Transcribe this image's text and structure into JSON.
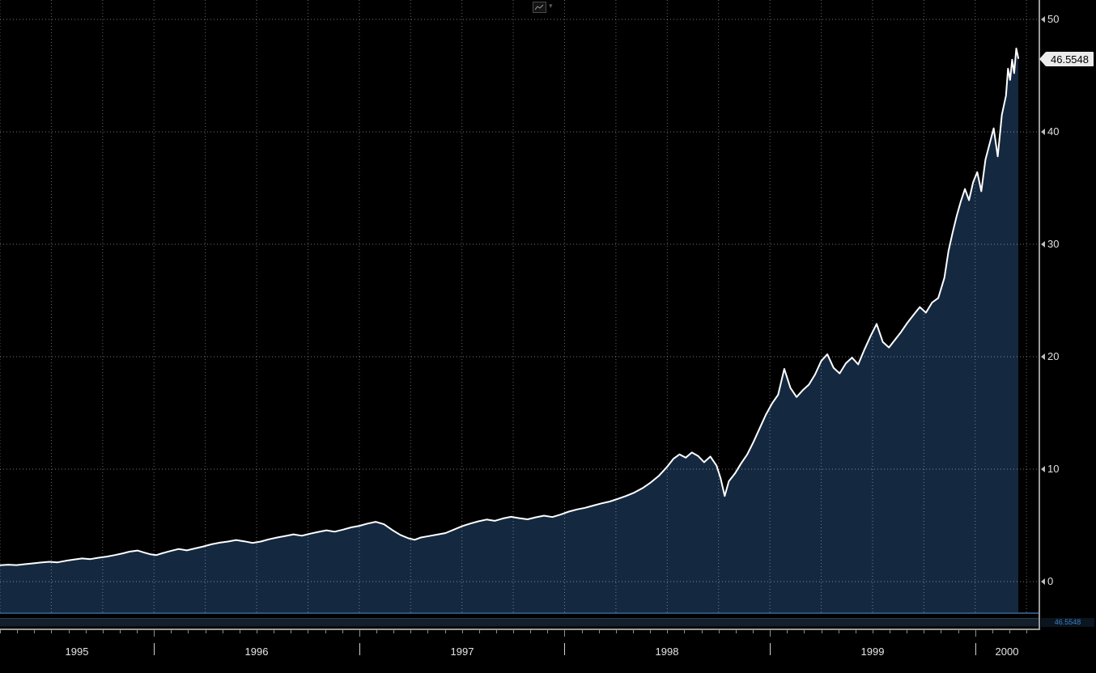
{
  "toolbar": {
    "chart_style_caret": "▾"
  },
  "y_axis": {
    "ticks": [
      50,
      40,
      30,
      20,
      10,
      0
    ]
  },
  "x_axis": {
    "years": [
      "1995",
      "1996",
      "1997",
      "1998",
      "1999",
      "2000"
    ]
  },
  "last_price": {
    "value": "46.5548"
  },
  "scrollbar": {
    "value_label": "46.5548"
  },
  "colors": {
    "background": "#000000",
    "area_fill": "#142940",
    "line": "#ffffff",
    "grid": "#ffffff",
    "axis": "#9a9a9a",
    "tag_bg": "#ececec",
    "tag_text": "#000000",
    "mini_tag_text": "#3e7fc1",
    "bottom_line": "#2e5379"
  },
  "chart_data": {
    "type": "area",
    "title": "",
    "ylabel": "",
    "xlabel": "",
    "legend": [],
    "grid": "dotted",
    "x_unit": "decimal_year",
    "x_range": [
      1995.25,
      2000.21
    ],
    "y_ticks": [
      0,
      10,
      20,
      30,
      40,
      50
    ],
    "y_display_range": [
      -2.95,
      51.7
    ],
    "x_year_boundaries": [
      1996,
      1997,
      1998,
      1999,
      2000
    ],
    "last_value": 46.5548,
    "last_value_label": "46.5548",
    "points": [
      [
        1995.25,
        1.45
      ],
      [
        1995.29,
        1.5
      ],
      [
        1995.33,
        1.47
      ],
      [
        1995.37,
        1.55
      ],
      [
        1995.41,
        1.62
      ],
      [
        1995.45,
        1.7
      ],
      [
        1995.49,
        1.76
      ],
      [
        1995.53,
        1.71
      ],
      [
        1995.57,
        1.85
      ],
      [
        1995.61,
        1.96
      ],
      [
        1995.65,
        2.06
      ],
      [
        1995.69,
        2.0
      ],
      [
        1995.73,
        2.12
      ],
      [
        1995.77,
        2.22
      ],
      [
        1995.81,
        2.36
      ],
      [
        1995.85,
        2.52
      ],
      [
        1995.88,
        2.66
      ],
      [
        1995.92,
        2.76
      ],
      [
        1995.95,
        2.6
      ],
      [
        1995.98,
        2.44
      ],
      [
        1996.01,
        2.35
      ],
      [
        1996.04,
        2.52
      ],
      [
        1996.08,
        2.72
      ],
      [
        1996.12,
        2.9
      ],
      [
        1996.16,
        2.78
      ],
      [
        1996.2,
        2.95
      ],
      [
        1996.24,
        3.12
      ],
      [
        1996.28,
        3.32
      ],
      [
        1996.32,
        3.46
      ],
      [
        1996.36,
        3.56
      ],
      [
        1996.4,
        3.7
      ],
      [
        1996.44,
        3.58
      ],
      [
        1996.48,
        3.44
      ],
      [
        1996.52,
        3.56
      ],
      [
        1996.56,
        3.76
      ],
      [
        1996.6,
        3.92
      ],
      [
        1996.64,
        4.06
      ],
      [
        1996.68,
        4.2
      ],
      [
        1996.72,
        4.08
      ],
      [
        1996.76,
        4.26
      ],
      [
        1996.8,
        4.42
      ],
      [
        1996.84,
        4.56
      ],
      [
        1996.88,
        4.44
      ],
      [
        1996.92,
        4.62
      ],
      [
        1996.96,
        4.82
      ],
      [
        1997.0,
        4.96
      ],
      [
        1997.04,
        5.16
      ],
      [
        1997.08,
        5.32
      ],
      [
        1997.12,
        5.1
      ],
      [
        1997.16,
        4.6
      ],
      [
        1997.2,
        4.15
      ],
      [
        1997.24,
        3.85
      ],
      [
        1997.27,
        3.72
      ],
      [
        1997.3,
        3.92
      ],
      [
        1997.34,
        4.05
      ],
      [
        1997.38,
        4.18
      ],
      [
        1997.42,
        4.32
      ],
      [
        1997.46,
        4.62
      ],
      [
        1997.5,
        4.92
      ],
      [
        1997.54,
        5.16
      ],
      [
        1997.58,
        5.36
      ],
      [
        1997.62,
        5.52
      ],
      [
        1997.66,
        5.4
      ],
      [
        1997.7,
        5.62
      ],
      [
        1997.74,
        5.76
      ],
      [
        1997.78,
        5.64
      ],
      [
        1997.82,
        5.54
      ],
      [
        1997.86,
        5.72
      ],
      [
        1997.9,
        5.86
      ],
      [
        1997.94,
        5.74
      ],
      [
        1997.98,
        5.96
      ],
      [
        1998.02,
        6.22
      ],
      [
        1998.06,
        6.42
      ],
      [
        1998.1,
        6.56
      ],
      [
        1998.14,
        6.76
      ],
      [
        1998.18,
        6.96
      ],
      [
        1998.22,
        7.12
      ],
      [
        1998.26,
        7.36
      ],
      [
        1998.3,
        7.62
      ],
      [
        1998.34,
        7.92
      ],
      [
        1998.38,
        8.32
      ],
      [
        1998.42,
        8.82
      ],
      [
        1998.46,
        9.42
      ],
      [
        1998.5,
        10.22
      ],
      [
        1998.53,
        10.92
      ],
      [
        1998.56,
        11.32
      ],
      [
        1998.59,
        11.02
      ],
      [
        1998.62,
        11.48
      ],
      [
        1998.65,
        11.18
      ],
      [
        1998.68,
        10.62
      ],
      [
        1998.71,
        11.12
      ],
      [
        1998.74,
        10.32
      ],
      [
        1998.76,
        9.2
      ],
      [
        1998.78,
        7.62
      ],
      [
        1998.8,
        8.92
      ],
      [
        1998.83,
        9.62
      ],
      [
        1998.86,
        10.52
      ],
      [
        1998.89,
        11.32
      ],
      [
        1998.92,
        12.42
      ],
      [
        1998.95,
        13.62
      ],
      [
        1998.98,
        14.82
      ],
      [
        1999.01,
        15.82
      ],
      [
        1999.04,
        16.62
      ],
      [
        1999.07,
        18.92
      ],
      [
        1999.1,
        17.22
      ],
      [
        1999.13,
        16.42
      ],
      [
        1999.16,
        17.02
      ],
      [
        1999.19,
        17.52
      ],
      [
        1999.22,
        18.42
      ],
      [
        1999.25,
        19.62
      ],
      [
        1999.28,
        20.22
      ],
      [
        1999.31,
        19.02
      ],
      [
        1999.34,
        18.52
      ],
      [
        1999.37,
        19.42
      ],
      [
        1999.4,
        19.92
      ],
      [
        1999.43,
        19.32
      ],
      [
        1999.46,
        20.62
      ],
      [
        1999.49,
        21.82
      ],
      [
        1999.52,
        22.92
      ],
      [
        1999.55,
        21.32
      ],
      [
        1999.58,
        20.82
      ],
      [
        1999.61,
        21.52
      ],
      [
        1999.64,
        22.22
      ],
      [
        1999.67,
        23.02
      ],
      [
        1999.7,
        23.72
      ],
      [
        1999.73,
        24.42
      ],
      [
        1999.76,
        23.92
      ],
      [
        1999.79,
        24.82
      ],
      [
        1999.82,
        25.22
      ],
      [
        1999.85,
        27.02
      ],
      [
        1999.87,
        29.42
      ],
      [
        1999.89,
        31.02
      ],
      [
        1999.91,
        32.52
      ],
      [
        1999.93,
        33.82
      ],
      [
        1999.95,
        34.92
      ],
      [
        1999.97,
        33.92
      ],
      [
        1999.99,
        35.52
      ],
      [
        2000.01,
        36.42
      ],
      [
        2000.03,
        34.72
      ],
      [
        2000.05,
        37.52
      ],
      [
        2000.07,
        38.92
      ],
      [
        2000.09,
        40.32
      ],
      [
        2000.11,
        37.82
      ],
      [
        2000.13,
        41.52
      ],
      [
        2000.15,
        43.22
      ],
      [
        2000.16,
        45.62
      ],
      [
        2000.17,
        44.62
      ],
      [
        2000.18,
        46.42
      ],
      [
        2000.19,
        45.22
      ],
      [
        2000.2,
        47.42
      ],
      [
        2000.21,
        46.5548
      ]
    ]
  }
}
